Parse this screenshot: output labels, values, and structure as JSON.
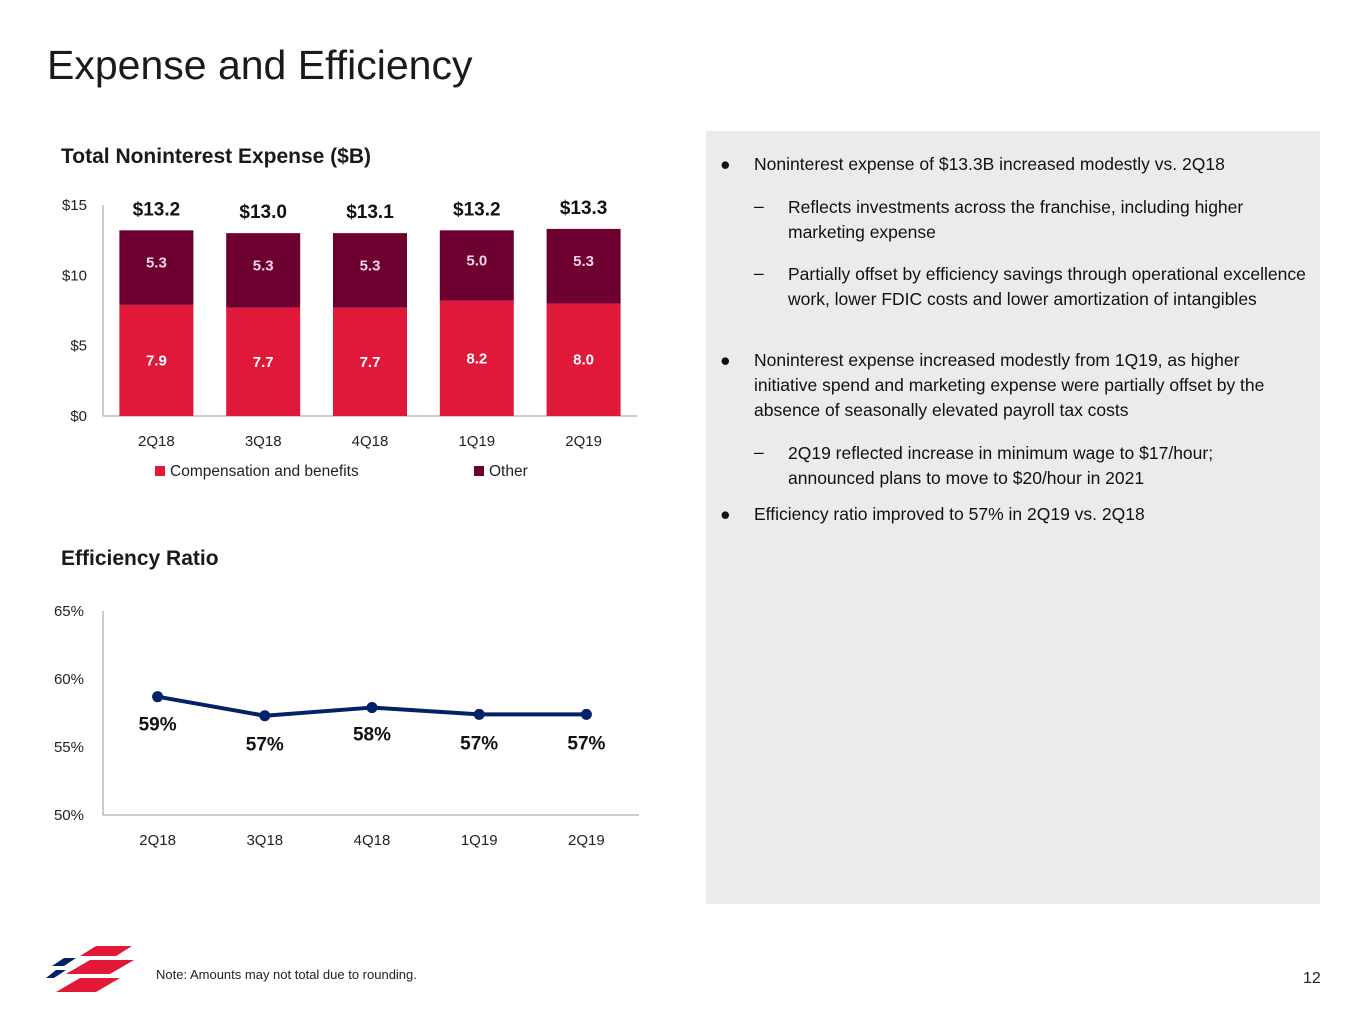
{
  "page": {
    "title": "Expense and Efficiency",
    "note": "Note: Amounts may not total due to rounding.",
    "page_number": "12"
  },
  "colors": {
    "compensation": "#e0193a",
    "other": "#6d0030",
    "line": "#012169",
    "panel": "#ebebeb",
    "logo_red": "#e31837",
    "logo_blue": "#012169"
  },
  "bullets": [
    {
      "level": 1,
      "text": "Noninterest expense of $13.3B increased modestly vs. 2Q18"
    },
    {
      "level": 2,
      "text": "Reflects investments across the franchise, including higher marketing expense"
    },
    {
      "level": 2,
      "text": "Partially offset by efficiency savings through operational excellence work, lower FDIC costs and lower amortization of intangibles"
    },
    {
      "level": 1,
      "text": "Noninterest expense increased modestly from 1Q19, as higher initiative spend and marketing expense were partially offset by the absence of seasonally elevated payroll tax costs"
    },
    {
      "level": 2,
      "text": "2Q19 reflected increase in minimum wage to $17/hour; announced plans to move to $20/hour in 2021"
    },
    {
      "level": 1,
      "text": "Efficiency ratio improved to 57% in 2Q19 vs. 2Q18"
    }
  ],
  "chart_data": [
    {
      "type": "bar",
      "stacked": true,
      "title": "Total Noninterest Expense ($B)",
      "categories": [
        "2Q18",
        "3Q18",
        "4Q18",
        "1Q19",
        "2Q19"
      ],
      "series": [
        {
          "name": "Compensation and benefits",
          "values": [
            7.9,
            7.7,
            7.7,
            8.2,
            8.0
          ],
          "labels": [
            "7.9",
            "7.7",
            "7.7",
            "8.2",
            "8.0"
          ]
        },
        {
          "name": "Other",
          "values": [
            5.3,
            5.3,
            5.3,
            5.0,
            5.3
          ],
          "labels": [
            "5.3",
            "5.3",
            "5.3",
            "5.0",
            "5.3"
          ]
        }
      ],
      "totals": [
        "$13.2",
        "$13.0",
        "$13.1",
        "$13.2",
        "$13.3"
      ],
      "yticks": [
        "$0",
        "$5",
        "$10",
        "$15"
      ],
      "ylim": [
        0,
        15
      ],
      "legend": "bottom"
    },
    {
      "type": "line",
      "title": "Efficiency Ratio",
      "categories": [
        "2Q18",
        "3Q18",
        "4Q18",
        "1Q19",
        "2Q19"
      ],
      "series": [
        {
          "values": [
            58.7,
            57.3,
            57.9,
            57.4,
            57.4
          ],
          "labels": [
            "59%",
            "57%",
            "58%",
            "57%",
            "57%"
          ]
        }
      ],
      "yticks": [
        "50%",
        "55%",
        "60%",
        "65%"
      ],
      "ylim": [
        50,
        65
      ]
    }
  ]
}
